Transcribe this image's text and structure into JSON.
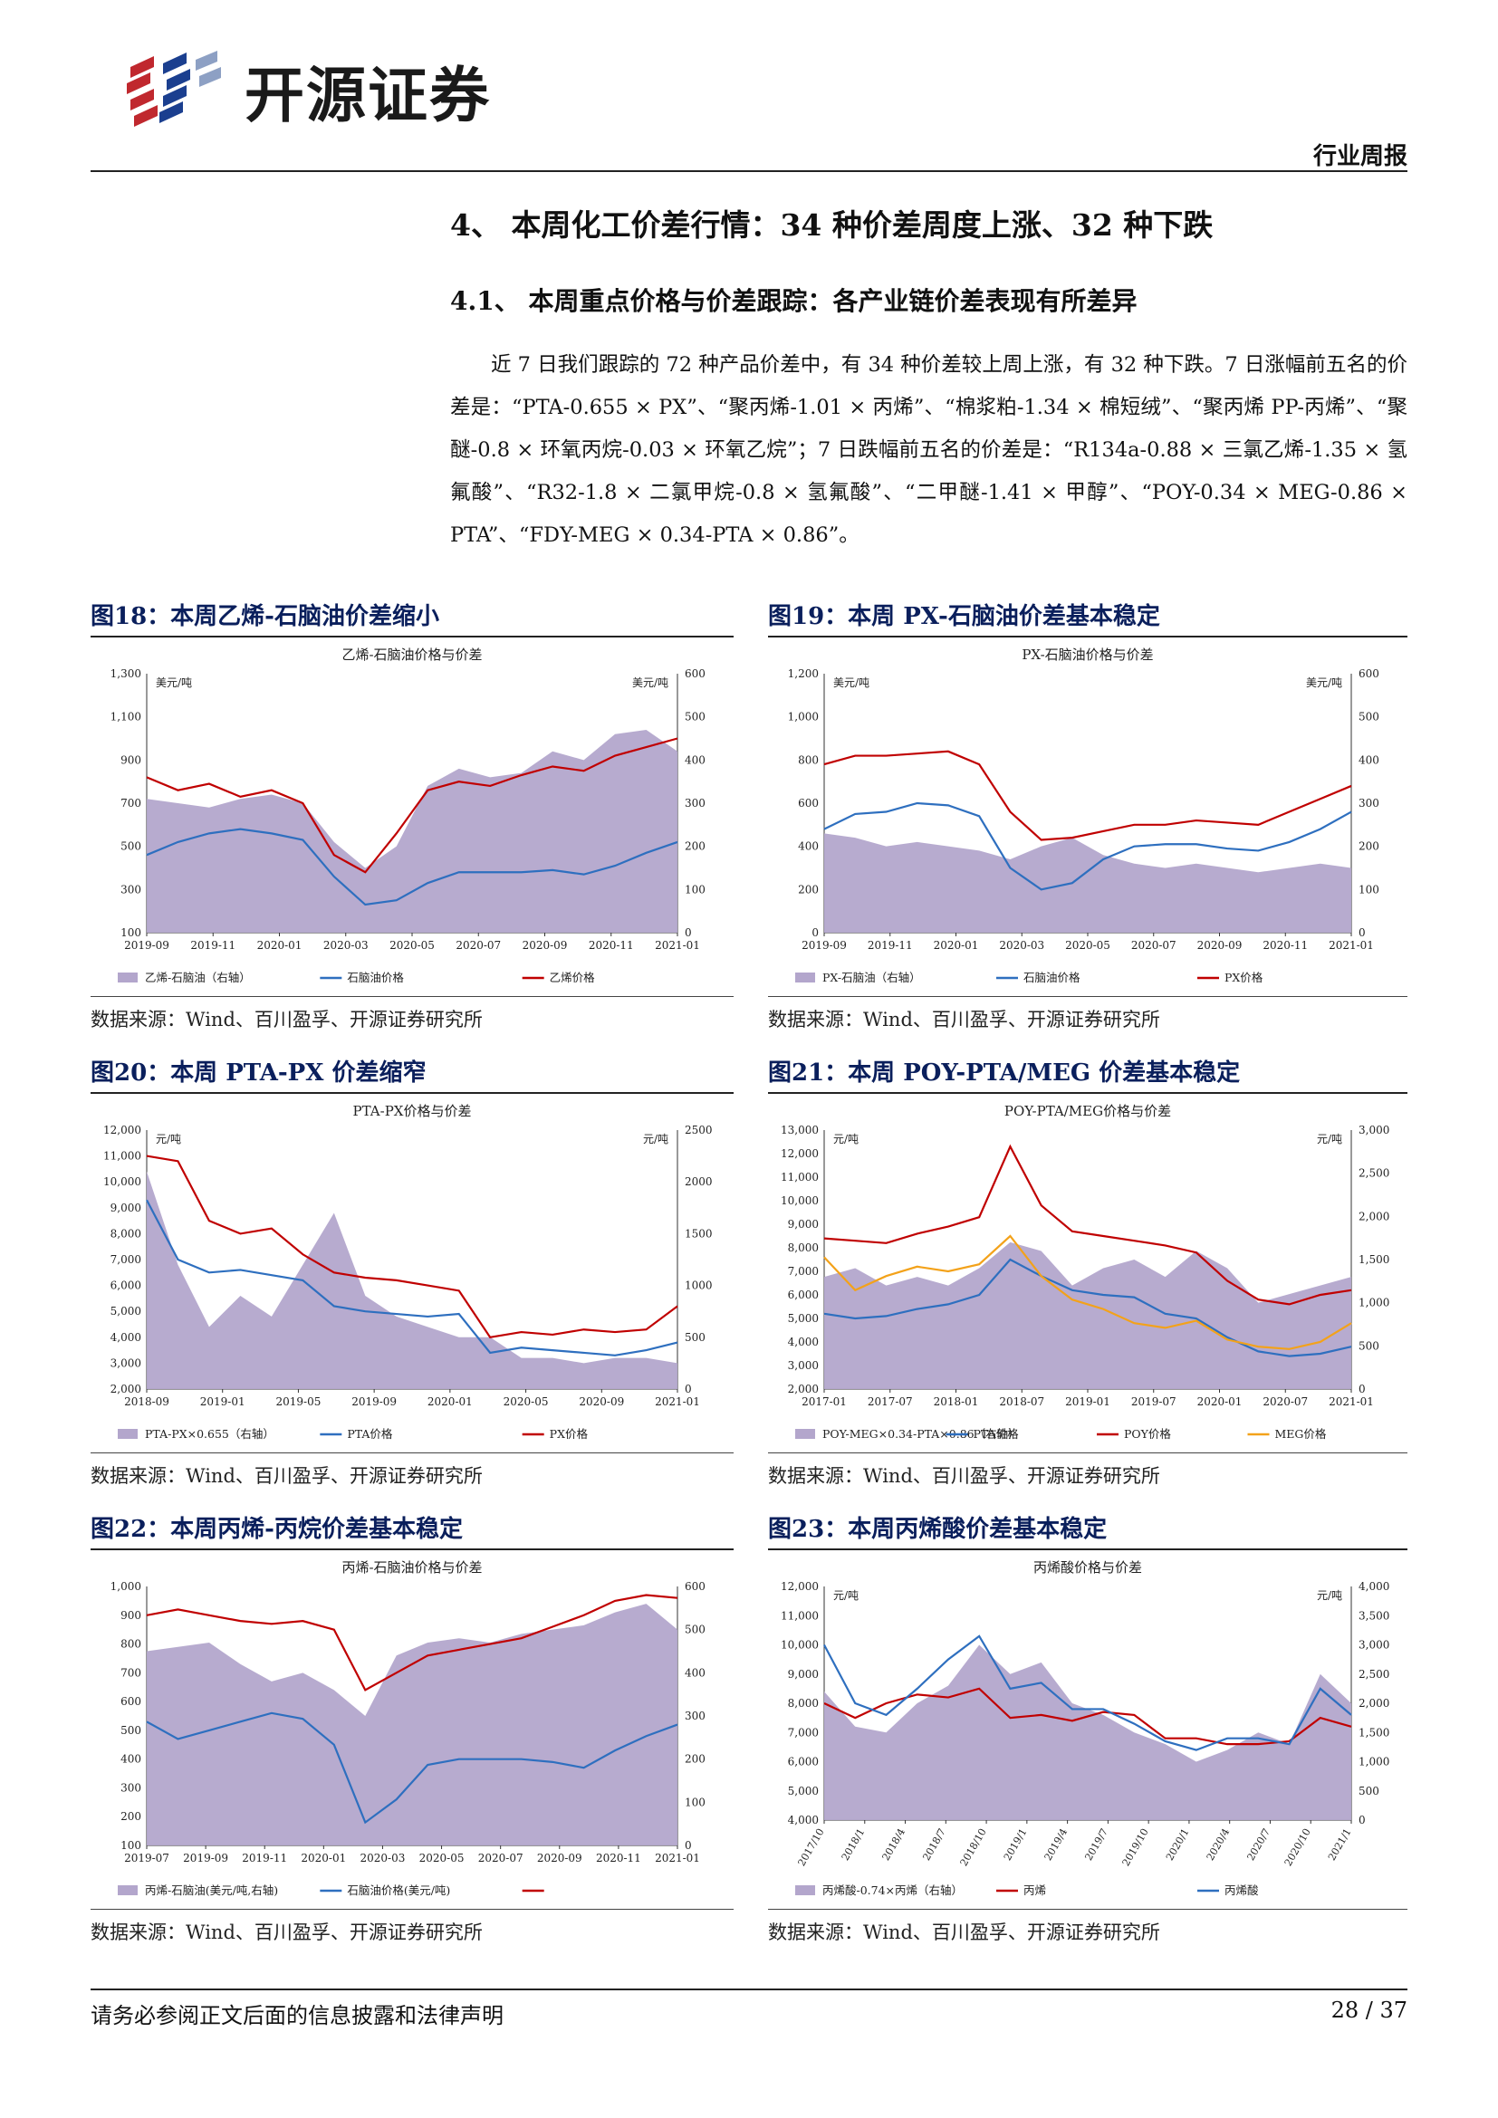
{
  "header": {
    "company": "开源证券",
    "report_type": "行业周报"
  },
  "section": {
    "title": "4、 本周化工价差行情：34 种价差周度上涨、32 种下跌",
    "subtitle": "4.1、 本周重点价格与价差跟踪：各产业链价差表现有所差异",
    "body": "近 7 日我们跟踪的 72 种产品价差中，有 34 种价差较上周上涨，有 32 种下跌。7 日涨幅前五名的价差是：“PTA-0.655 × PX”、“聚丙烯-1.01 × 丙烯”、“棉浆粕-1.34 × 棉短绒”、“聚丙烯 PP-丙烯”、“聚醚-0.8 × 环氧丙烷-0.03 × 环氧乙烷”；7 日跌幅前五名的价差是：“R134a-0.88 × 三氯乙烯-1.35 × 氢氟酸”、“R32-1.8 × 二氯甲烷-0.8 × 氢氟酸”、“二甲醚-1.41 × 甲醇”、“POY-0.34 × MEG-0.86 × PTA”、“FDY-MEG × 0.34-PTA × 0.86”。"
  },
  "colors": {
    "area": "#b3a6cc",
    "blue": "#2e6fbf",
    "red": "#c00000",
    "orange": "#f3a21a",
    "title_navy": "#0a1f5c"
  },
  "figures": [
    {
      "title": "图18：本周乙烯-石脑油价差缩小",
      "source": "数据来源：Wind、百川盈孚、开源证券研究所",
      "chart_data": {
        "type": "line",
        "title": "乙烯-石脑油价格与价差",
        "left_unit": "美元/吨",
        "right_unit": "美元/吨",
        "y_left": [
          100,
          1300
        ],
        "y_right": [
          0,
          600
        ],
        "left_ticks": [
          "100",
          "300",
          "500",
          "700",
          "900",
          "1,100",
          "1,300"
        ],
        "right_ticks": [
          "0",
          "100",
          "200",
          "300",
          "400",
          "500",
          "600"
        ],
        "x_ticks": [
          "2019-09",
          "2019-11",
          "2020-01",
          "2020-03",
          "2020-05",
          "2020-07",
          "2020-09",
          "2020-11",
          "2021-01"
        ],
        "x": [
          0,
          1,
          2,
          3,
          4,
          5,
          6,
          7,
          8,
          9,
          10,
          11,
          12,
          13,
          14,
          15,
          16,
          17
        ],
        "series": [
          {
            "name": "乙烯-石脑油（右轴）",
            "kind": "area",
            "axis": "right",
            "color": "#b3a6cc",
            "values": [
              310,
              300,
              290,
              310,
              320,
              300,
              210,
              150,
              200,
              340,
              380,
              360,
              370,
              420,
              400,
              460,
              470,
              420
            ]
          },
          {
            "name": "石脑油价格",
            "kind": "line",
            "axis": "left",
            "color": "#2e6fbf",
            "values": [
              460,
              520,
              560,
              580,
              560,
              530,
              360,
              230,
              250,
              330,
              380,
              380,
              380,
              390,
              370,
              410,
              470,
              520
            ]
          },
          {
            "name": "乙烯价格",
            "kind": "line",
            "axis": "left",
            "color": "#c00000",
            "values": [
              820,
              760,
              790,
              730,
              760,
              700,
              460,
              380,
              560,
              760,
              800,
              780,
              830,
              870,
              850,
              920,
              960,
              1000
            ]
          }
        ]
      }
    },
    {
      "title": "图19：本周 PX-石脑油价差基本稳定",
      "source": "数据来源：Wind、百川盈孚、开源证券研究所",
      "chart_data": {
        "type": "line",
        "title": "PX-石脑油价格与价差",
        "left_unit": "美元/吨",
        "right_unit": "美元/吨",
        "y_left": [
          0,
          1200
        ],
        "y_right": [
          0,
          600
        ],
        "left_ticks": [
          "0",
          "200",
          "400",
          "600",
          "800",
          "1,000",
          "1,200"
        ],
        "right_ticks": [
          "0",
          "100",
          "200",
          "300",
          "400",
          "500",
          "600"
        ],
        "x_ticks": [
          "2019-09",
          "2019-11",
          "2020-01",
          "2020-03",
          "2020-05",
          "2020-07",
          "2020-09",
          "2020-11",
          "2021-01"
        ],
        "x": [
          0,
          1,
          2,
          3,
          4,
          5,
          6,
          7,
          8,
          9,
          10,
          11,
          12,
          13,
          14,
          15,
          16,
          17
        ],
        "series": [
          {
            "name": "PX-石脑油（右轴）",
            "kind": "area",
            "axis": "right",
            "color": "#b3a6cc",
            "values": [
              230,
              220,
              200,
              210,
              200,
              190,
              170,
              200,
              220,
              180,
              160,
              150,
              160,
              150,
              140,
              150,
              160,
              150
            ]
          },
          {
            "name": "石脑油价格",
            "kind": "line",
            "axis": "left",
            "color": "#2e6fbf",
            "values": [
              480,
              550,
              560,
              600,
              590,
              540,
              300,
              200,
              230,
              340,
              400,
              410,
              410,
              390,
              380,
              420,
              480,
              560
            ]
          },
          {
            "name": "PX价格",
            "kind": "line",
            "axis": "left",
            "color": "#c00000",
            "values": [
              780,
              820,
              820,
              830,
              840,
              780,
              560,
              430,
              440,
              470,
              500,
              500,
              520,
              510,
              500,
              560,
              620,
              680
            ]
          }
        ]
      }
    },
    {
      "title": "图20：本周 PTA-PX 价差缩窄",
      "source": "数据来源：Wind、百川盈孚、开源证券研究所",
      "chart_data": {
        "type": "line",
        "title": "PTA-PX价格与价差",
        "left_unit": "元/吨",
        "right_unit": "元/吨",
        "y_left": [
          2000,
          12000
        ],
        "y_right": [
          0,
          2500
        ],
        "left_ticks": [
          "2,000",
          "3,000",
          "4,000",
          "5,000",
          "6,000",
          "7,000",
          "8,000",
          "9,000",
          "10,000",
          "11,000",
          "12,000"
        ],
        "right_ticks": [
          "0",
          "500",
          "1000",
          "1500",
          "2000",
          "2500"
        ],
        "x_ticks": [
          "2018-09",
          "2019-01",
          "2019-05",
          "2019-09",
          "2020-01",
          "2020-05",
          "2020-09",
          "2021-01"
        ],
        "x": [
          0,
          1,
          2,
          3,
          4,
          5,
          6,
          7,
          8,
          9,
          10,
          11,
          12,
          13,
          14,
          15,
          16,
          17
        ],
        "series": [
          {
            "name": "PTA-PX×0.655（右轴）",
            "kind": "area",
            "axis": "right",
            "color": "#b3a6cc",
            "values": [
              2100,
              1200,
              600,
              900,
              700,
              1200,
              1700,
              900,
              700,
              600,
              500,
              500,
              300,
              300,
              250,
              300,
              300,
              250
            ]
          },
          {
            "name": "PTA价格",
            "kind": "line",
            "axis": "left",
            "color": "#2e6fbf",
            "values": [
              9300,
              7000,
              6500,
              6600,
              6400,
              6200,
              5200,
              5000,
              4900,
              4800,
              4900,
              3400,
              3600,
              3500,
              3400,
              3300,
              3500,
              3800
            ]
          },
          {
            "name": "PX价格",
            "kind": "line",
            "axis": "left",
            "color": "#c00000",
            "values": [
              11000,
              10800,
              8500,
              8000,
              8200,
              7200,
              6500,
              6300,
              6200,
              6000,
              5800,
              4000,
              4200,
              4100,
              4300,
              4200,
              4300,
              5200
            ]
          }
        ]
      }
    },
    {
      "title": "图21：本周 POY-PTA/MEG 价差基本稳定",
      "source": "数据来源：Wind、百川盈孚、开源证券研究所",
      "chart_data": {
        "type": "line",
        "title": "POY-PTA/MEG价格与价差",
        "left_unit": "元/吨",
        "right_unit": "元/吨",
        "y_left": [
          2000,
          13000
        ],
        "y_right": [
          0,
          3000
        ],
        "left_ticks": [
          "2,000",
          "3,000",
          "4,000",
          "5,000",
          "6,000",
          "7,000",
          "8,000",
          "9,000",
          "10,000",
          "11,000",
          "12,000",
          "13,000"
        ],
        "right_ticks": [
          "0",
          "500",
          "1,000",
          "1,500",
          "2,000",
          "2,500",
          "3,000"
        ],
        "x_ticks": [
          "2017-01",
          "2017-07",
          "2018-01",
          "2018-07",
          "2019-01",
          "2019-07",
          "2020-01",
          "2020-07",
          "2021-01"
        ],
        "x": [
          0,
          1,
          2,
          3,
          4,
          5,
          6,
          7,
          8,
          9,
          10,
          11,
          12,
          13,
          14,
          15,
          16,
          17
        ],
        "series": [
          {
            "name": "POY-MEG×0.34-PTA×0.86（右轴）",
            "kind": "area",
            "axis": "right",
            "color": "#b3a6cc",
            "values": [
              1300,
              1400,
              1200,
              1300,
              1200,
              1400,
              1700,
              1600,
              1200,
              1400,
              1500,
              1300,
              1600,
              1400,
              1000,
              1100,
              1200,
              1300
            ]
          },
          {
            "name": "PTA价格",
            "kind": "line",
            "axis": "left",
            "color": "#2e6fbf",
            "values": [
              5200,
              5000,
              5100,
              5400,
              5600,
              6000,
              7500,
              6800,
              6200,
              6000,
              5900,
              5200,
              5000,
              4200,
              3600,
              3400,
              3500,
              3800
            ]
          },
          {
            "name": "POY价格",
            "kind": "line",
            "axis": "left",
            "color": "#c00000",
            "values": [
              8400,
              8300,
              8200,
              8600,
              8900,
              9300,
              12300,
              9800,
              8700,
              8500,
              8300,
              8100,
              7800,
              6600,
              5800,
              5600,
              6000,
              6200
            ]
          },
          {
            "name": "MEG价格",
            "kind": "line",
            "axis": "left",
            "color": "#f3a21a",
            "values": [
              7600,
              6200,
              6800,
              7200,
              7000,
              7300,
              8500,
              6800,
              5800,
              5400,
              4800,
              4600,
              4900,
              4100,
              3800,
              3700,
              4000,
              4800
            ]
          }
        ]
      }
    },
    {
      "title": "图22：本周丙烯-丙烷价差基本稳定",
      "source": "数据来源：Wind、百川盈孚、开源证券研究所",
      "chart_data": {
        "type": "line",
        "title": "丙烯-石脑油价格与价差",
        "left_unit": "",
        "right_unit": "",
        "y_left": [
          100,
          1000
        ],
        "y_right": [
          0,
          600
        ],
        "left_ticks": [
          "100",
          "200",
          "300",
          "400",
          "500",
          "600",
          "700",
          "800",
          "900",
          "1,000"
        ],
        "right_ticks": [
          "0",
          "100",
          "200",
          "300",
          "400",
          "500",
          "600"
        ],
        "x_ticks": [
          "2019-07",
          "2019-09",
          "2019-11",
          "2020-01",
          "2020-03",
          "2020-05",
          "2020-07",
          "2020-09",
          "2020-11",
          "2021-01"
        ],
        "x": [
          0,
          1,
          2,
          3,
          4,
          5,
          6,
          7,
          8,
          9,
          10,
          11,
          12,
          13,
          14,
          15,
          16,
          17
        ],
        "series": [
          {
            "name": "丙烯-石脑油(美元/吨,右轴)",
            "kind": "area",
            "axis": "right",
            "color": "#b3a6cc",
            "values": [
              450,
              460,
              470,
              420,
              380,
              400,
              360,
              300,
              440,
              470,
              480,
              470,
              490,
              500,
              510,
              540,
              560,
              500
            ]
          },
          {
            "name": "石脑油价格(美元/吨)",
            "kind": "line",
            "axis": "left",
            "color": "#2e6fbf",
            "values": [
              530,
              470,
              500,
              530,
              560,
              540,
              450,
              180,
              260,
              380,
              400,
              400,
              400,
              390,
              370,
              430,
              480,
              520
            ]
          },
          {
            "name": "",
            "kind": "line",
            "axis": "left",
            "color": "#c00000",
            "values": [
              900,
              920,
              900,
              880,
              870,
              880,
              850,
              640,
              700,
              760,
              780,
              800,
              820,
              860,
              900,
              950,
              970,
              960
            ]
          }
        ]
      }
    },
    {
      "title": "图23：本周丙烯酸价差基本稳定",
      "source": "数据来源：Wind、百川盈孚、开源证券研究所",
      "chart_data": {
        "type": "line",
        "title": "丙烯酸价格与价差",
        "left_unit": "元/吨",
        "right_unit": "元/吨",
        "y_left": [
          4000,
          12000
        ],
        "y_right": [
          0,
          4000
        ],
        "left_ticks": [
          "4,000",
          "5,000",
          "6,000",
          "7,000",
          "8,000",
          "9,000",
          "10,000",
          "11,000",
          "12,000"
        ],
        "right_ticks": [
          "0",
          "500",
          "1,000",
          "1,500",
          "2,000",
          "2,500",
          "3,000",
          "3,500",
          "4,000"
        ],
        "x_ticks": [
          "2017/10",
          "2018/1",
          "2018/4",
          "2018/7",
          "2018/10",
          "2019/1",
          "2019/4",
          "2019/7",
          "2019/10",
          "2020/1",
          "2020/4",
          "2020/7",
          "2020/10",
          "2021/1"
        ],
        "x": [
          0,
          1,
          2,
          3,
          4,
          5,
          6,
          7,
          8,
          9,
          10,
          11,
          12,
          13,
          14,
          15,
          16,
          17
        ],
        "series": [
          {
            "name": "丙烯酸-0.74×丙烯（右轴）",
            "kind": "area",
            "axis": "right",
            "color": "#b3a6cc",
            "values": [
              2200,
              1600,
              1500,
              2000,
              2300,
              3000,
              2500,
              2700,
              2000,
              1800,
              1500,
              1300,
              1000,
              1200,
              1500,
              1300,
              2500,
              2000
            ]
          },
          {
            "name": "丙烯",
            "kind": "line",
            "axis": "left",
            "color": "#c00000",
            "values": [
              8000,
              7500,
              8000,
              8300,
              8200,
              8500,
              7500,
              7600,
              7400,
              7700,
              7600,
              6800,
              6800,
              6600,
              6600,
              6700,
              7500,
              7200
            ]
          },
          {
            "name": "丙烯酸",
            "kind": "line",
            "axis": "left",
            "color": "#2e6fbf",
            "values": [
              10000,
              8000,
              7600,
              8500,
              9500,
              10300,
              8500,
              8700,
              7800,
              7800,
              7300,
              6700,
              6400,
              6800,
              6800,
              6600,
              8500,
              7600
            ]
          }
        ]
      }
    }
  ],
  "footer": {
    "disclaimer": "请务必参阅正文后面的信息披露和法律声明",
    "page": "28 / 37"
  }
}
